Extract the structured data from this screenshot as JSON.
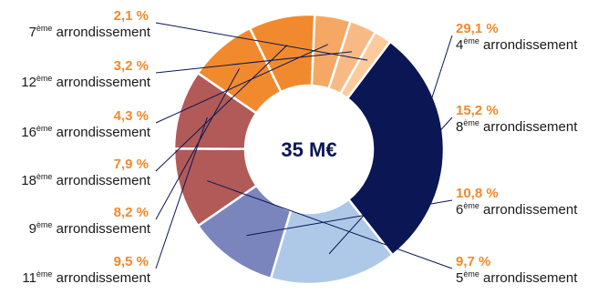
{
  "chart_data": {
    "type": "pie",
    "donut": true,
    "center_label": "35 M€",
    "start_angle_deg": -53,
    "slices": [
      {
        "value": 29.1,
        "pct_label": "29,1 %",
        "ordinal": "4",
        "sup": "ème",
        "rest": "arrondissement",
        "color": "#0b1655"
      },
      {
        "value": 15.2,
        "pct_label": "15,2 %",
        "ordinal": "8",
        "sup": "ème",
        "rest": "arrondissement",
        "color": "#aec8e8"
      },
      {
        "value": 10.8,
        "pct_label": "10,8 %",
        "ordinal": "6",
        "sup": "ème",
        "rest": "arrondissement",
        "color": "#7b85bd"
      },
      {
        "value": 9.7,
        "pct_label": "9,7 %",
        "ordinal": "5",
        "sup": "ème",
        "rest": "arrondissement",
        "color": "#b15a58"
      },
      {
        "value": 9.5,
        "pct_label": "9,5 %",
        "ordinal": "11",
        "sup": "ème",
        "rest": "arrondissement",
        "color": "#b15a58"
      },
      {
        "value": 8.2,
        "pct_label": "8,2 %",
        "ordinal": "9",
        "sup": "ème",
        "rest": "arrondissement",
        "color": "#f18a2e"
      },
      {
        "value": 7.9,
        "pct_label": "7,9 %",
        "ordinal": "18",
        "sup": "ème",
        "rest": "arrondissement",
        "color": "#f18a2e"
      },
      {
        "value": 4.3,
        "pct_label": "4,3 %",
        "ordinal": "16",
        "sup": "ème",
        "rest": "arrondissement",
        "color": "#f5a764"
      },
      {
        "value": 3.2,
        "pct_label": "3,2 %",
        "ordinal": "12",
        "sup": "ème",
        "rest": "arrondissement",
        "color": "#f8ba84"
      },
      {
        "value": 2.1,
        "pct_label": "2,1 %",
        "ordinal": "7",
        "sup": "ème",
        "rest": "arrondissement",
        "color": "#fbcb9e"
      }
    ]
  }
}
